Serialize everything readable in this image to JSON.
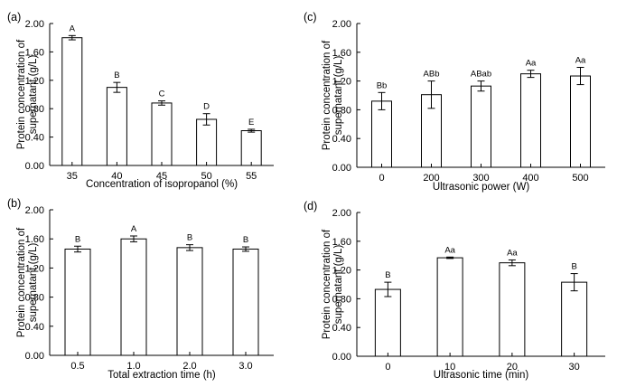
{
  "chart_data": [
    {
      "panel": "(a)",
      "type": "bar",
      "xlabel": "Concentration of isopropanol (%)",
      "ylabel": [
        "Protein concentration of",
        "supernatant (g/L)"
      ],
      "ylim": [
        0,
        2.0
      ],
      "yticks": [
        "0.00",
        "0.40",
        "0.80",
        "1.20",
        "1.60",
        "2.00"
      ],
      "categories": [
        "35",
        "40",
        "45",
        "50",
        "55"
      ],
      "values": [
        1.8,
        1.1,
        0.88,
        0.65,
        0.49
      ],
      "errors": [
        0.03,
        0.07,
        0.03,
        0.08,
        0.02
      ],
      "labels": [
        "A",
        "B",
        "C",
        "D",
        "E"
      ]
    },
    {
      "panel": "(c)",
      "type": "bar",
      "xlabel": "Ultrasonic power (W)",
      "ylabel": [
        "Protein concentration of",
        "supernatant (g/L)"
      ],
      "ylim": [
        0,
        2.0
      ],
      "yticks": [
        "0.00",
        "0.40",
        "0.80",
        "1.20",
        "1.60",
        "2.00"
      ],
      "categories": [
        "0",
        "200",
        "300",
        "400",
        "500"
      ],
      "values": [
        0.92,
        1.01,
        1.13,
        1.3,
        1.27
      ],
      "errors": [
        0.12,
        0.19,
        0.07,
        0.05,
        0.12
      ],
      "labels": [
        "Bb",
        "ABb",
        "ABab",
        "Aa",
        "Aa"
      ]
    },
    {
      "panel": "(b)",
      "type": "bar",
      "xlabel": "Total extraction time (h)",
      "ylabel": [
        "Protein concentration of",
        "supernatant (g/L)"
      ],
      "ylim": [
        0,
        2.0
      ],
      "yticks": [
        "0.00",
        "0.40",
        "0.80",
        "1.20",
        "1.60",
        "2.00"
      ],
      "categories": [
        "0.5",
        "1.0",
        "2.0",
        "3.0"
      ],
      "values": [
        1.46,
        1.6,
        1.48,
        1.46
      ],
      "errors": [
        0.04,
        0.04,
        0.04,
        0.03
      ],
      "labels": [
        "B",
        "A",
        "B",
        "B"
      ]
    },
    {
      "panel": "(d)",
      "type": "bar",
      "xlabel": "Ultrasonic time (min)",
      "ylabel": [
        "Protein concentration of",
        "supernatant (g/L)"
      ],
      "ylim": [
        0,
        2.0
      ],
      "yticks": [
        "0.00",
        "0.40",
        "0.80",
        "1.20",
        "1.60",
        "2.00"
      ],
      "categories": [
        "0",
        "10",
        "20",
        "30"
      ],
      "values": [
        0.93,
        1.37,
        1.3,
        1.03
      ],
      "errors": [
        0.1,
        0.01,
        0.04,
        0.12
      ],
      "labels": [
        "B",
        "Aa",
        "Aa",
        "B"
      ]
    }
  ]
}
